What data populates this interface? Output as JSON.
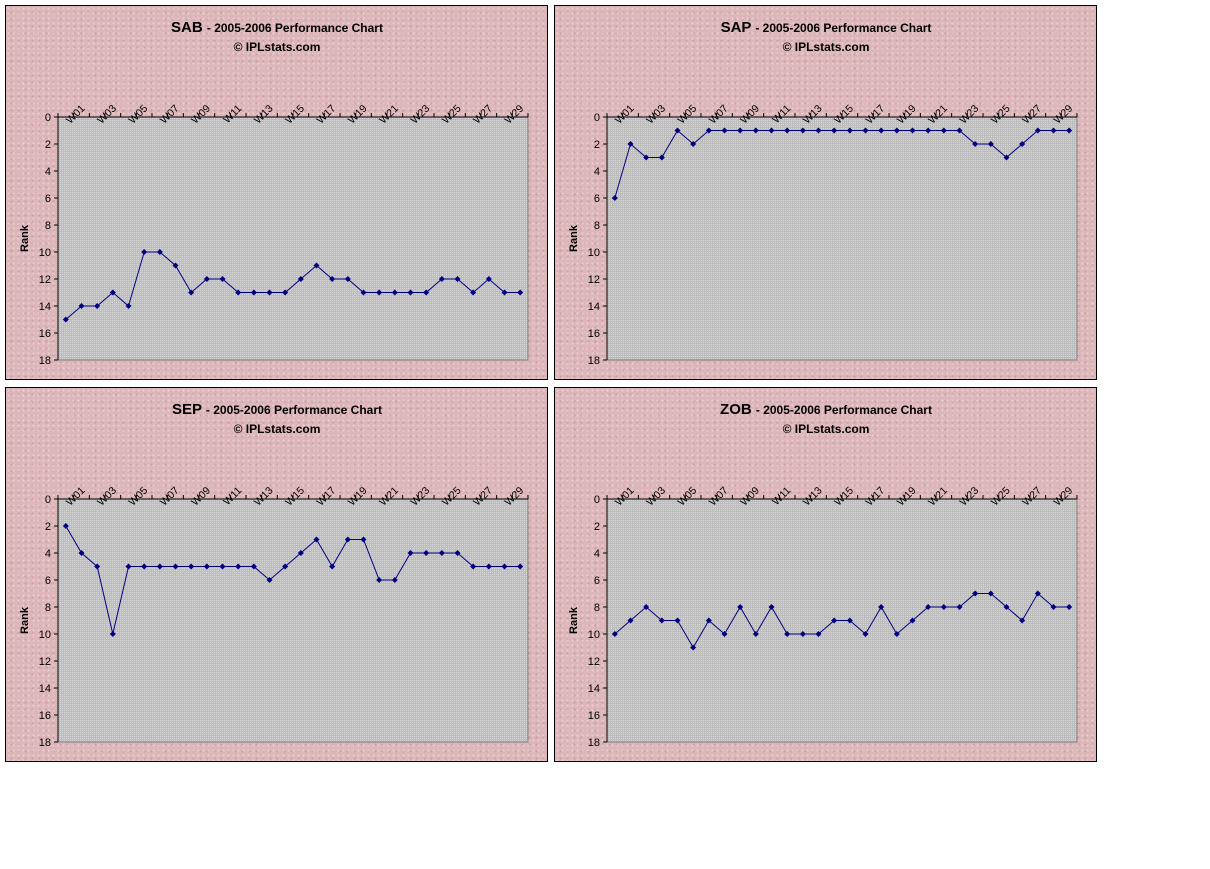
{
  "common": {
    "title_suffix": "- 2005-2006 Performance Chart",
    "credit": "© IPLstats.com",
    "ylabel": "Rank",
    "line_color": "#000080",
    "plot_bg": "#c0c0c0",
    "panel_bg": "#dcb6b9"
  },
  "chart_data": [
    {
      "type": "line",
      "team": "SAB",
      "title": "SAB - 2005-2006 Performance Chart",
      "subtitle": "© IPLstats.com",
      "ylabel": "Rank",
      "ylim": [
        0,
        18
      ],
      "y_inverted": true,
      "y_ticks": [
        0,
        2,
        4,
        6,
        8,
        10,
        12,
        14,
        16,
        18
      ],
      "x_axis_position": "top",
      "x_tick_labels": [
        "W01",
        "W03",
        "W05",
        "W07",
        "W09",
        "W11",
        "W13",
        "W15",
        "W17",
        "W19",
        "W21",
        "W23",
        "W25",
        "W27",
        "W29"
      ],
      "x": [
        "W00",
        "W01",
        "W02",
        "W03",
        "W04",
        "W05",
        "W06",
        "W07",
        "W08",
        "W09",
        "W10",
        "W11",
        "W12",
        "W13",
        "W14",
        "W15",
        "W16",
        "W17",
        "W18",
        "W19",
        "W20",
        "W21",
        "W22",
        "W23",
        "W24",
        "W25",
        "W26",
        "W27",
        "W28",
        "W29"
      ],
      "values": [
        15,
        14,
        14,
        13,
        14,
        10,
        10,
        11,
        13,
        12,
        12,
        13,
        13,
        13,
        13,
        12,
        11,
        12,
        12,
        13,
        13,
        13,
        13,
        13,
        12,
        12,
        13,
        12,
        13,
        13
      ]
    },
    {
      "type": "line",
      "team": "SAP",
      "title": "SAP - 2005-2006 Performance Chart",
      "subtitle": "© IPLstats.com",
      "ylabel": "Rank",
      "ylim": [
        0,
        18
      ],
      "y_inverted": true,
      "y_ticks": [
        0,
        2,
        4,
        6,
        8,
        10,
        12,
        14,
        16,
        18
      ],
      "x_axis_position": "top",
      "x_tick_labels": [
        "W01",
        "W03",
        "W05",
        "W07",
        "W09",
        "W11",
        "W13",
        "W15",
        "W17",
        "W19",
        "W21",
        "W23",
        "W25",
        "W27",
        "W29"
      ],
      "x": [
        "W00",
        "W01",
        "W02",
        "W03",
        "W04",
        "W05",
        "W06",
        "W07",
        "W08",
        "W09",
        "W10",
        "W11",
        "W12",
        "W13",
        "W14",
        "W15",
        "W16",
        "W17",
        "W18",
        "W19",
        "W20",
        "W21",
        "W22",
        "W23",
        "W24",
        "W25",
        "W26",
        "W27",
        "W28",
        "W29"
      ],
      "values": [
        6,
        2,
        3,
        3,
        1,
        2,
        1,
        1,
        1,
        1,
        1,
        1,
        1,
        1,
        1,
        1,
        1,
        1,
        1,
        1,
        1,
        1,
        1,
        2,
        2,
        3,
        2,
        1,
        1,
        1
      ]
    },
    {
      "type": "line",
      "team": "SEP",
      "title": "SEP - 2005-2006 Performance Chart",
      "subtitle": "© IPLstats.com",
      "ylabel": "Rank",
      "ylim": [
        0,
        18
      ],
      "y_inverted": true,
      "y_ticks": [
        0,
        2,
        4,
        6,
        8,
        10,
        12,
        14,
        16,
        18
      ],
      "x_axis_position": "top",
      "x_tick_labels": [
        "W01",
        "W03",
        "W05",
        "W07",
        "W09",
        "W11",
        "W13",
        "W15",
        "W17",
        "W19",
        "W21",
        "W23",
        "W25",
        "W27",
        "W29"
      ],
      "x": [
        "W00",
        "W01",
        "W02",
        "W03",
        "W04",
        "W05",
        "W06",
        "W07",
        "W08",
        "W09",
        "W10",
        "W11",
        "W12",
        "W13",
        "W14",
        "W15",
        "W16",
        "W17",
        "W18",
        "W19",
        "W20",
        "W21",
        "W22",
        "W23",
        "W24",
        "W25",
        "W26",
        "W27",
        "W28",
        "W29"
      ],
      "values": [
        2,
        4,
        5,
        10,
        5,
        5,
        5,
        5,
        5,
        5,
        5,
        5,
        5,
        6,
        5,
        4,
        3,
        5,
        3,
        3,
        6,
        6,
        4,
        4,
        4,
        4,
        5,
        5,
        5,
        5
      ]
    },
    {
      "type": "line",
      "team": "ZOB",
      "title": "ZOB - 2005-2006 Performance Chart",
      "subtitle": "© IPLstats.com",
      "ylabel": "Rank",
      "ylim": [
        0,
        18
      ],
      "y_inverted": true,
      "y_ticks": [
        0,
        2,
        4,
        6,
        8,
        10,
        12,
        14,
        16,
        18
      ],
      "x_axis_position": "top",
      "x_tick_labels": [
        "W01",
        "W03",
        "W05",
        "W07",
        "W09",
        "W11",
        "W13",
        "W15",
        "W17",
        "W19",
        "W21",
        "W23",
        "W25",
        "W27",
        "W29"
      ],
      "x": [
        "W00",
        "W01",
        "W02",
        "W03",
        "W04",
        "W05",
        "W06",
        "W07",
        "W08",
        "W09",
        "W10",
        "W11",
        "W12",
        "W13",
        "W14",
        "W15",
        "W16",
        "W17",
        "W18",
        "W19",
        "W20",
        "W21",
        "W22",
        "W23",
        "W24",
        "W25",
        "W26",
        "W27",
        "W28",
        "W29"
      ],
      "values": [
        10,
        9,
        8,
        9,
        9,
        11,
        9,
        10,
        8,
        10,
        8,
        10,
        10,
        10,
        9,
        9,
        10,
        8,
        10,
        9,
        8,
        8,
        8,
        7,
        7,
        8,
        9,
        7,
        8,
        8
      ]
    }
  ]
}
